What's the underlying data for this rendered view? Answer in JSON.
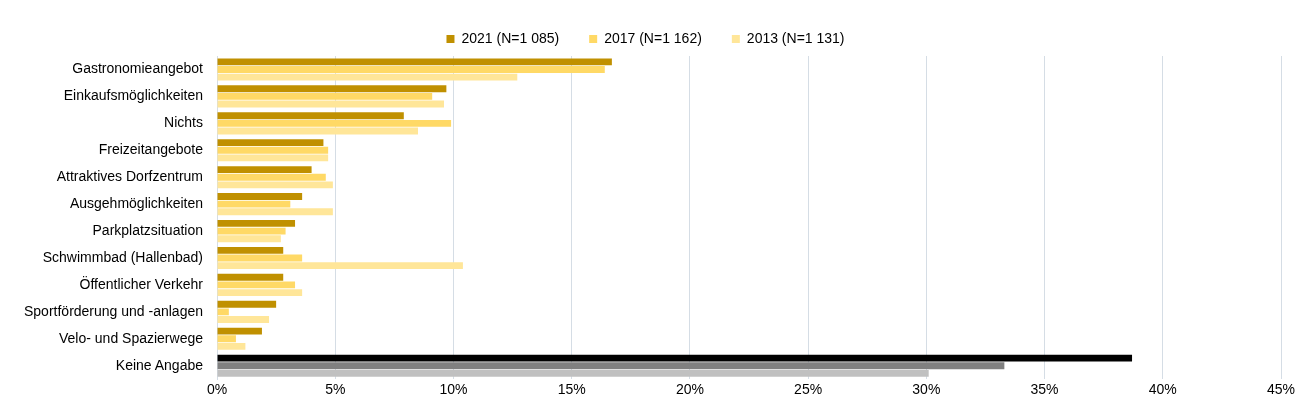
{
  "chart_data": {
    "type": "bar",
    "orientation": "horizontal",
    "categories": [
      "Gastronomieangebot",
      "Einkaufsmöglichkeiten",
      "Nichts",
      "Freizeitangebote",
      "Attraktives Dorfzentrum",
      "Ausgehmöglichkeiten",
      "Parkplatzsituation",
      "Schwimmbad (Hallenbad)",
      "Öffentlicher Verkehr",
      "Sportförderung und -anlagen",
      "Velo- und Spazierwege",
      "Keine Angabe"
    ],
    "series": [
      {
        "name": "2021 (N=1 085)",
        "color": "#c09000",
        "colors": [
          "#c09000",
          "#c09000",
          "#c09000",
          "#c09000",
          "#c09000",
          "#c09000",
          "#c09000",
          "#c09000",
          "#c09000",
          "#c09000",
          "#c09000",
          "#000000"
        ],
        "values": [
          16.7,
          9.7,
          7.9,
          4.5,
          4.0,
          3.6,
          3.3,
          2.8,
          2.8,
          2.5,
          1.9,
          38.7
        ]
      },
      {
        "name": "2017 (N=1 162)",
        "color": "#ffd966",
        "colors": [
          "#ffd966",
          "#ffd966",
          "#ffd966",
          "#ffd966",
          "#ffd966",
          "#ffd966",
          "#ffd966",
          "#ffd966",
          "#ffd966",
          "#ffd966",
          "#ffd966",
          "#808080"
        ],
        "values": [
          16.4,
          9.1,
          9.9,
          4.7,
          4.6,
          3.1,
          2.9,
          3.6,
          3.3,
          0.5,
          0.8,
          33.3
        ]
      },
      {
        "name": "2013 (N=1 131)",
        "color": "#ffe699",
        "colors": [
          "#ffe699",
          "#ffe699",
          "#ffe699",
          "#ffe699",
          "#ffe699",
          "#ffe699",
          "#ffe699",
          "#ffe699",
          "#ffe699",
          "#ffe699",
          "#ffe699",
          "#c0c0c0"
        ],
        "values": [
          12.7,
          9.6,
          8.5,
          4.7,
          4.9,
          4.9,
          2.7,
          10.4,
          3.6,
          2.2,
          1.2,
          30.1
        ]
      }
    ],
    "xlim": [
      0,
      45
    ],
    "xticks": [
      {
        "value": 0,
        "label": "0%"
      },
      {
        "value": 5,
        "label": "5%"
      },
      {
        "value": 10,
        "label": "10%"
      },
      {
        "value": 15,
        "label": "15%"
      },
      {
        "value": 20,
        "label": "20%"
      },
      {
        "value": 25,
        "label": "25%"
      },
      {
        "value": 30,
        "label": "30%"
      },
      {
        "value": 35,
        "label": "35%"
      },
      {
        "value": 40,
        "label": "40%"
      },
      {
        "value": 45,
        "label": "45%"
      }
    ],
    "grid": "x",
    "legend": "top"
  }
}
